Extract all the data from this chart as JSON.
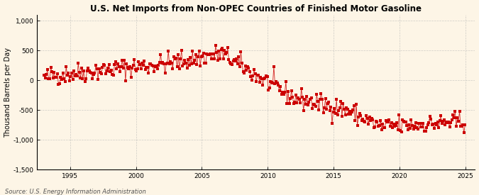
{
  "title": "U.S. Net Imports from Non-OPEC Countries of Finished Motor Gasoline",
  "ylabel": "Thousand Barrels per Day",
  "source": "Source: U.S. Energy Information Administration",
  "background_color": "#fdf5e6",
  "dot_color": "#cc0000",
  "grid_color": "#b0b0b0",
  "ylim": [
    -1500,
    1100
  ],
  "yticks": [
    -1500,
    -1000,
    -500,
    0,
    500,
    1000
  ],
  "ytick_labels": [
    "-1,500",
    "-1,000",
    "-500",
    "0",
    "500",
    "1,000"
  ],
  "xticks": [
    1995,
    2000,
    2005,
    2010,
    2015,
    2020,
    2025
  ],
  "xlim_start": 1992.5,
  "xlim_end": 2025.7,
  "figsize": [
    6.75,
    2.75
  ],
  "dpi": 100
}
